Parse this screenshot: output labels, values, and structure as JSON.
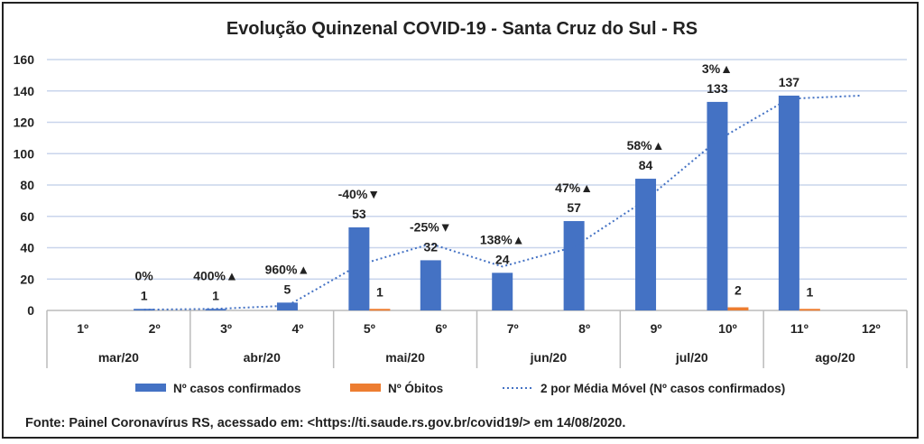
{
  "chart_data": {
    "type": "bar",
    "title": "Evolução Quinzenal COVID-19 - Santa Cruz do Sul - RS",
    "categories": [
      "1º",
      "2º",
      "3º",
      "4º",
      "5º",
      "6º",
      "7º",
      "8º",
      "9º",
      "10º",
      "11º",
      "12º"
    ],
    "groups": [
      {
        "label": "mar/20",
        "span": 2
      },
      {
        "label": "abr/20",
        "span": 2
      },
      {
        "label": "mai/20",
        "span": 2
      },
      {
        "label": "jun/20",
        "span": 2
      },
      {
        "label": "jul/20",
        "span": 2
      },
      {
        "label": "ago/20",
        "span": 2
      }
    ],
    "series": [
      {
        "name": "Nº casos confirmados",
        "color": "#4472C4",
        "values": [
          0,
          1,
          1,
          5,
          53,
          32,
          24,
          57,
          84,
          133,
          137,
          null
        ],
        "labels": [
          "",
          "1",
          "1",
          "5",
          "53",
          "32",
          "24",
          "57",
          "84",
          "133",
          "137",
          ""
        ]
      },
      {
        "name": "Nº Óbitos",
        "color": "#ED7D31",
        "values": [
          0,
          0,
          0,
          0,
          1,
          0,
          0,
          0,
          0,
          2,
          1,
          null
        ],
        "labels": [
          "",
          "",
          "",
          "",
          "1",
          "",
          "",
          "",
          "",
          "2",
          "1",
          ""
        ]
      },
      {
        "name": "2 por Média Móvel (Nº casos confirmados)",
        "color": "#4472C4",
        "type": "line-dotted",
        "values": [
          null,
          0.5,
          1,
          3,
          29,
          42.5,
          28,
          40.5,
          70.5,
          108.5,
          135,
          137
        ]
      }
    ],
    "annotations": [
      "",
      "0%",
      "400%▲",
      "960%▲",
      "-40%▼",
      "-25%▼",
      "138%▲",
      "47%▲",
      "58%▲",
      "3%▲",
      "",
      ""
    ],
    "yticks": [
      0,
      20,
      40,
      60,
      80,
      100,
      120,
      140,
      160
    ],
    "ylim": [
      0,
      160
    ],
    "grid": true,
    "legend": "bottom"
  },
  "footer": "Fonte: Painel Coronavírus RS, acessado em: <https://ti.saude.rs.gov.br/covid19/> em 14/08/2020."
}
